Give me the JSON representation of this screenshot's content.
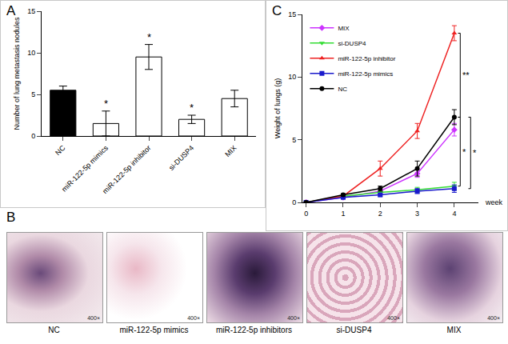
{
  "chart_data": [
    {
      "panel": "A",
      "type": "bar",
      "categories": [
        "NC",
        "miR-122-5p mimics",
        "miR-122-5p inhibitor",
        "si-DUSP4",
        "MIX"
      ],
      "values": [
        5.5,
        1.5,
        9.5,
        2,
        4.5
      ],
      "errors": [
        0.5,
        1.5,
        1.5,
        0.5,
        1
      ],
      "colors": [
        "#000000",
        "#ffffff",
        "#ffffff",
        "#ffffff",
        "#ffffff"
      ],
      "y_label": "Number of lung metastasis nodules",
      "ylim": [
        0,
        15
      ],
      "yticks": [
        0,
        5,
        10,
        15
      ],
      "annotations": [
        {
          "category": "miR-122-5p mimics",
          "text": "*"
        },
        {
          "category": "miR-122-5p inhibitor",
          "text": "*"
        },
        {
          "category": "si-DUSP4",
          "text": "*"
        }
      ]
    },
    {
      "panel": "C",
      "type": "line",
      "x": [
        0,
        1,
        2,
        3,
        4
      ],
      "x_label": "week",
      "y_label": "Weight of lungs (g)",
      "xlim": [
        -0.1,
        4.65
      ],
      "xticks": [
        0,
        1,
        2,
        3,
        4
      ],
      "ylim": [
        0,
        15
      ],
      "yticks": [
        0,
        5,
        10,
        15
      ],
      "legend": "upper left",
      "series": [
        {
          "name": "MIX",
          "color": "#cc33ff",
          "marker": "diamond",
          "values": [
            0,
            0.4,
            0.9,
            2.3,
            5.8
          ],
          "errors": [
            0,
            0.1,
            0.2,
            0.3,
            0.5
          ]
        },
        {
          "name": "si-DUSP4",
          "color": "#33dd33",
          "marker": "triangle-down",
          "values": [
            0,
            0.5,
            0.8,
            1.0,
            1.3
          ],
          "errors": [
            0,
            0.1,
            0.1,
            0.2,
            0.3
          ]
        },
        {
          "name": "miR-122-5p inhibitor",
          "color": "#ee2222",
          "marker": "triangle-up",
          "values": [
            0,
            0.5,
            2.7,
            5.7,
            13.5
          ],
          "errors": [
            0,
            0.1,
            0.6,
            0.6,
            0.6
          ]
        },
        {
          "name": "miR-122-5p mimics",
          "color": "#1a1acc",
          "marker": "square",
          "values": [
            0,
            0.4,
            0.6,
            0.9,
            1.1
          ],
          "errors": [
            0,
            0.1,
            0.1,
            0.2,
            0.3
          ]
        },
        {
          "name": "NC",
          "color": "#000000",
          "marker": "circle",
          "values": [
            0,
            0.6,
            1.1,
            2.7,
            6.8
          ],
          "errors": [
            0,
            0.1,
            0.2,
            0.6,
            0.6
          ]
        }
      ],
      "annotations": [
        {
          "text": "**",
          "between": [
            "miR-122-5p inhibitor",
            "NC"
          ]
        },
        {
          "text": "*",
          "between": [
            "NC",
            "si-DUSP4"
          ]
        },
        {
          "text": "*",
          "between": [
            "NC",
            "miR-122-5p mimics"
          ]
        }
      ]
    }
  ],
  "images": {
    "panel": "B",
    "captions": [
      "NC",
      "miR-122-5p mimics",
      "miR-122-5p inhibitors",
      "si-DUSP4",
      "MIX"
    ],
    "scale_label": "400×"
  }
}
